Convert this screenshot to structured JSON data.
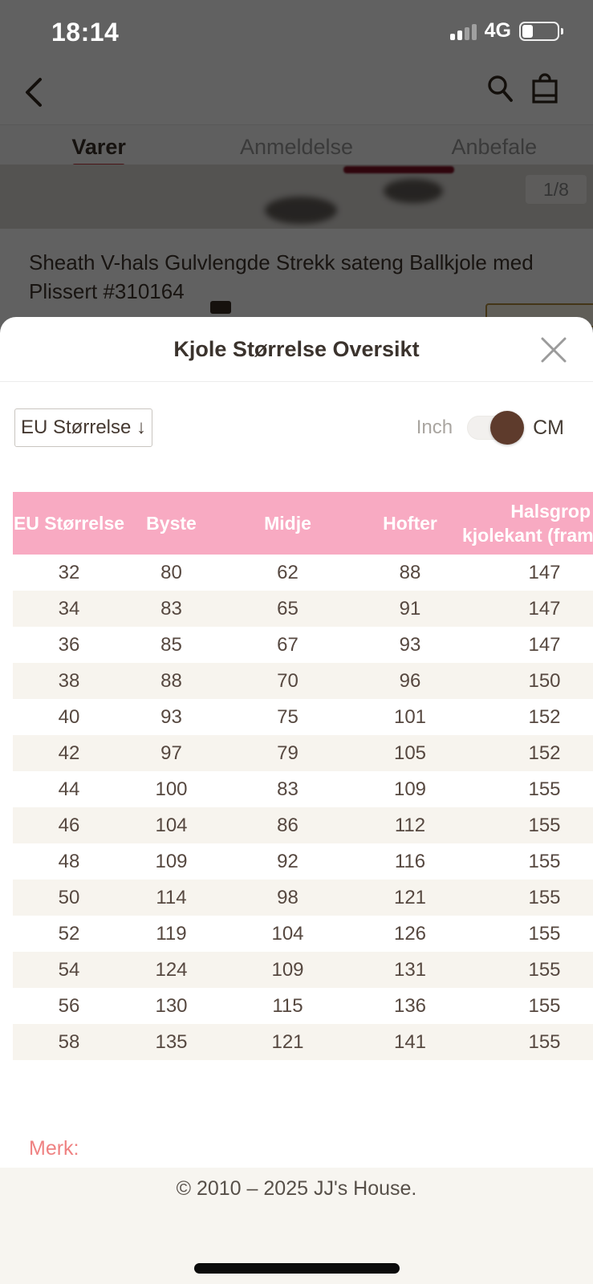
{
  "status_bar": {
    "time": "18:14",
    "network": "4G",
    "battery_level_percent": 30,
    "signal_bars_filled": 2
  },
  "tabs": {
    "items": [
      {
        "label": "Varer",
        "active": true
      },
      {
        "label": "Anmeldelse",
        "active": false
      },
      {
        "label": "Anbefale",
        "active": false
      }
    ]
  },
  "gallery": {
    "image_counter": "1/8"
  },
  "product": {
    "title": "Sheath V-hals Gulvlengde Strekk sateng Ballkjole med Plissert #310164"
  },
  "modal": {
    "title": "Kjole Størrelse Oversikt",
    "size_system_dropdown": "EU Størrelse ↓",
    "units": {
      "inch_label": "Inch",
      "cm_label": "CM",
      "selected": "CM"
    },
    "table": {
      "headers": [
        "EU Størrelse",
        "Byste",
        "Midje",
        "Hofter"
      ],
      "last_header_lines": [
        "Halsgrop",
        "kjolekant (fram"
      ],
      "rows": [
        [
          "32",
          "80",
          "62",
          "88",
          "147"
        ],
        [
          "34",
          "83",
          "65",
          "91",
          "147"
        ],
        [
          "36",
          "85",
          "67",
          "93",
          "147"
        ],
        [
          "38",
          "88",
          "70",
          "96",
          "150"
        ],
        [
          "40",
          "93",
          "75",
          "101",
          "152"
        ],
        [
          "42",
          "97",
          "79",
          "105",
          "152"
        ],
        [
          "44",
          "100",
          "83",
          "109",
          "155"
        ],
        [
          "46",
          "104",
          "86",
          "112",
          "155"
        ],
        [
          "48",
          "109",
          "92",
          "116",
          "155"
        ],
        [
          "50",
          "114",
          "98",
          "121",
          "155"
        ],
        [
          "52",
          "119",
          "104",
          "126",
          "155"
        ],
        [
          "54",
          "124",
          "109",
          "131",
          "155"
        ],
        [
          "56",
          "130",
          "115",
          "136",
          "155"
        ],
        [
          "58",
          "135",
          "121",
          "141",
          "155"
        ]
      ]
    },
    "note_label": "Merk:",
    "copyright": "© 2010 – 2025 JJ's House."
  },
  "colors": {
    "table_header_pink": "#f8aac2",
    "row_alt_beige": "#f7f4ee",
    "toggle_brown": "#5e3b2c",
    "active_tab_red": "#c2353f",
    "note_salmon": "#ef8282",
    "dim_overlay": "rgba(0,0,0,0.62)"
  }
}
